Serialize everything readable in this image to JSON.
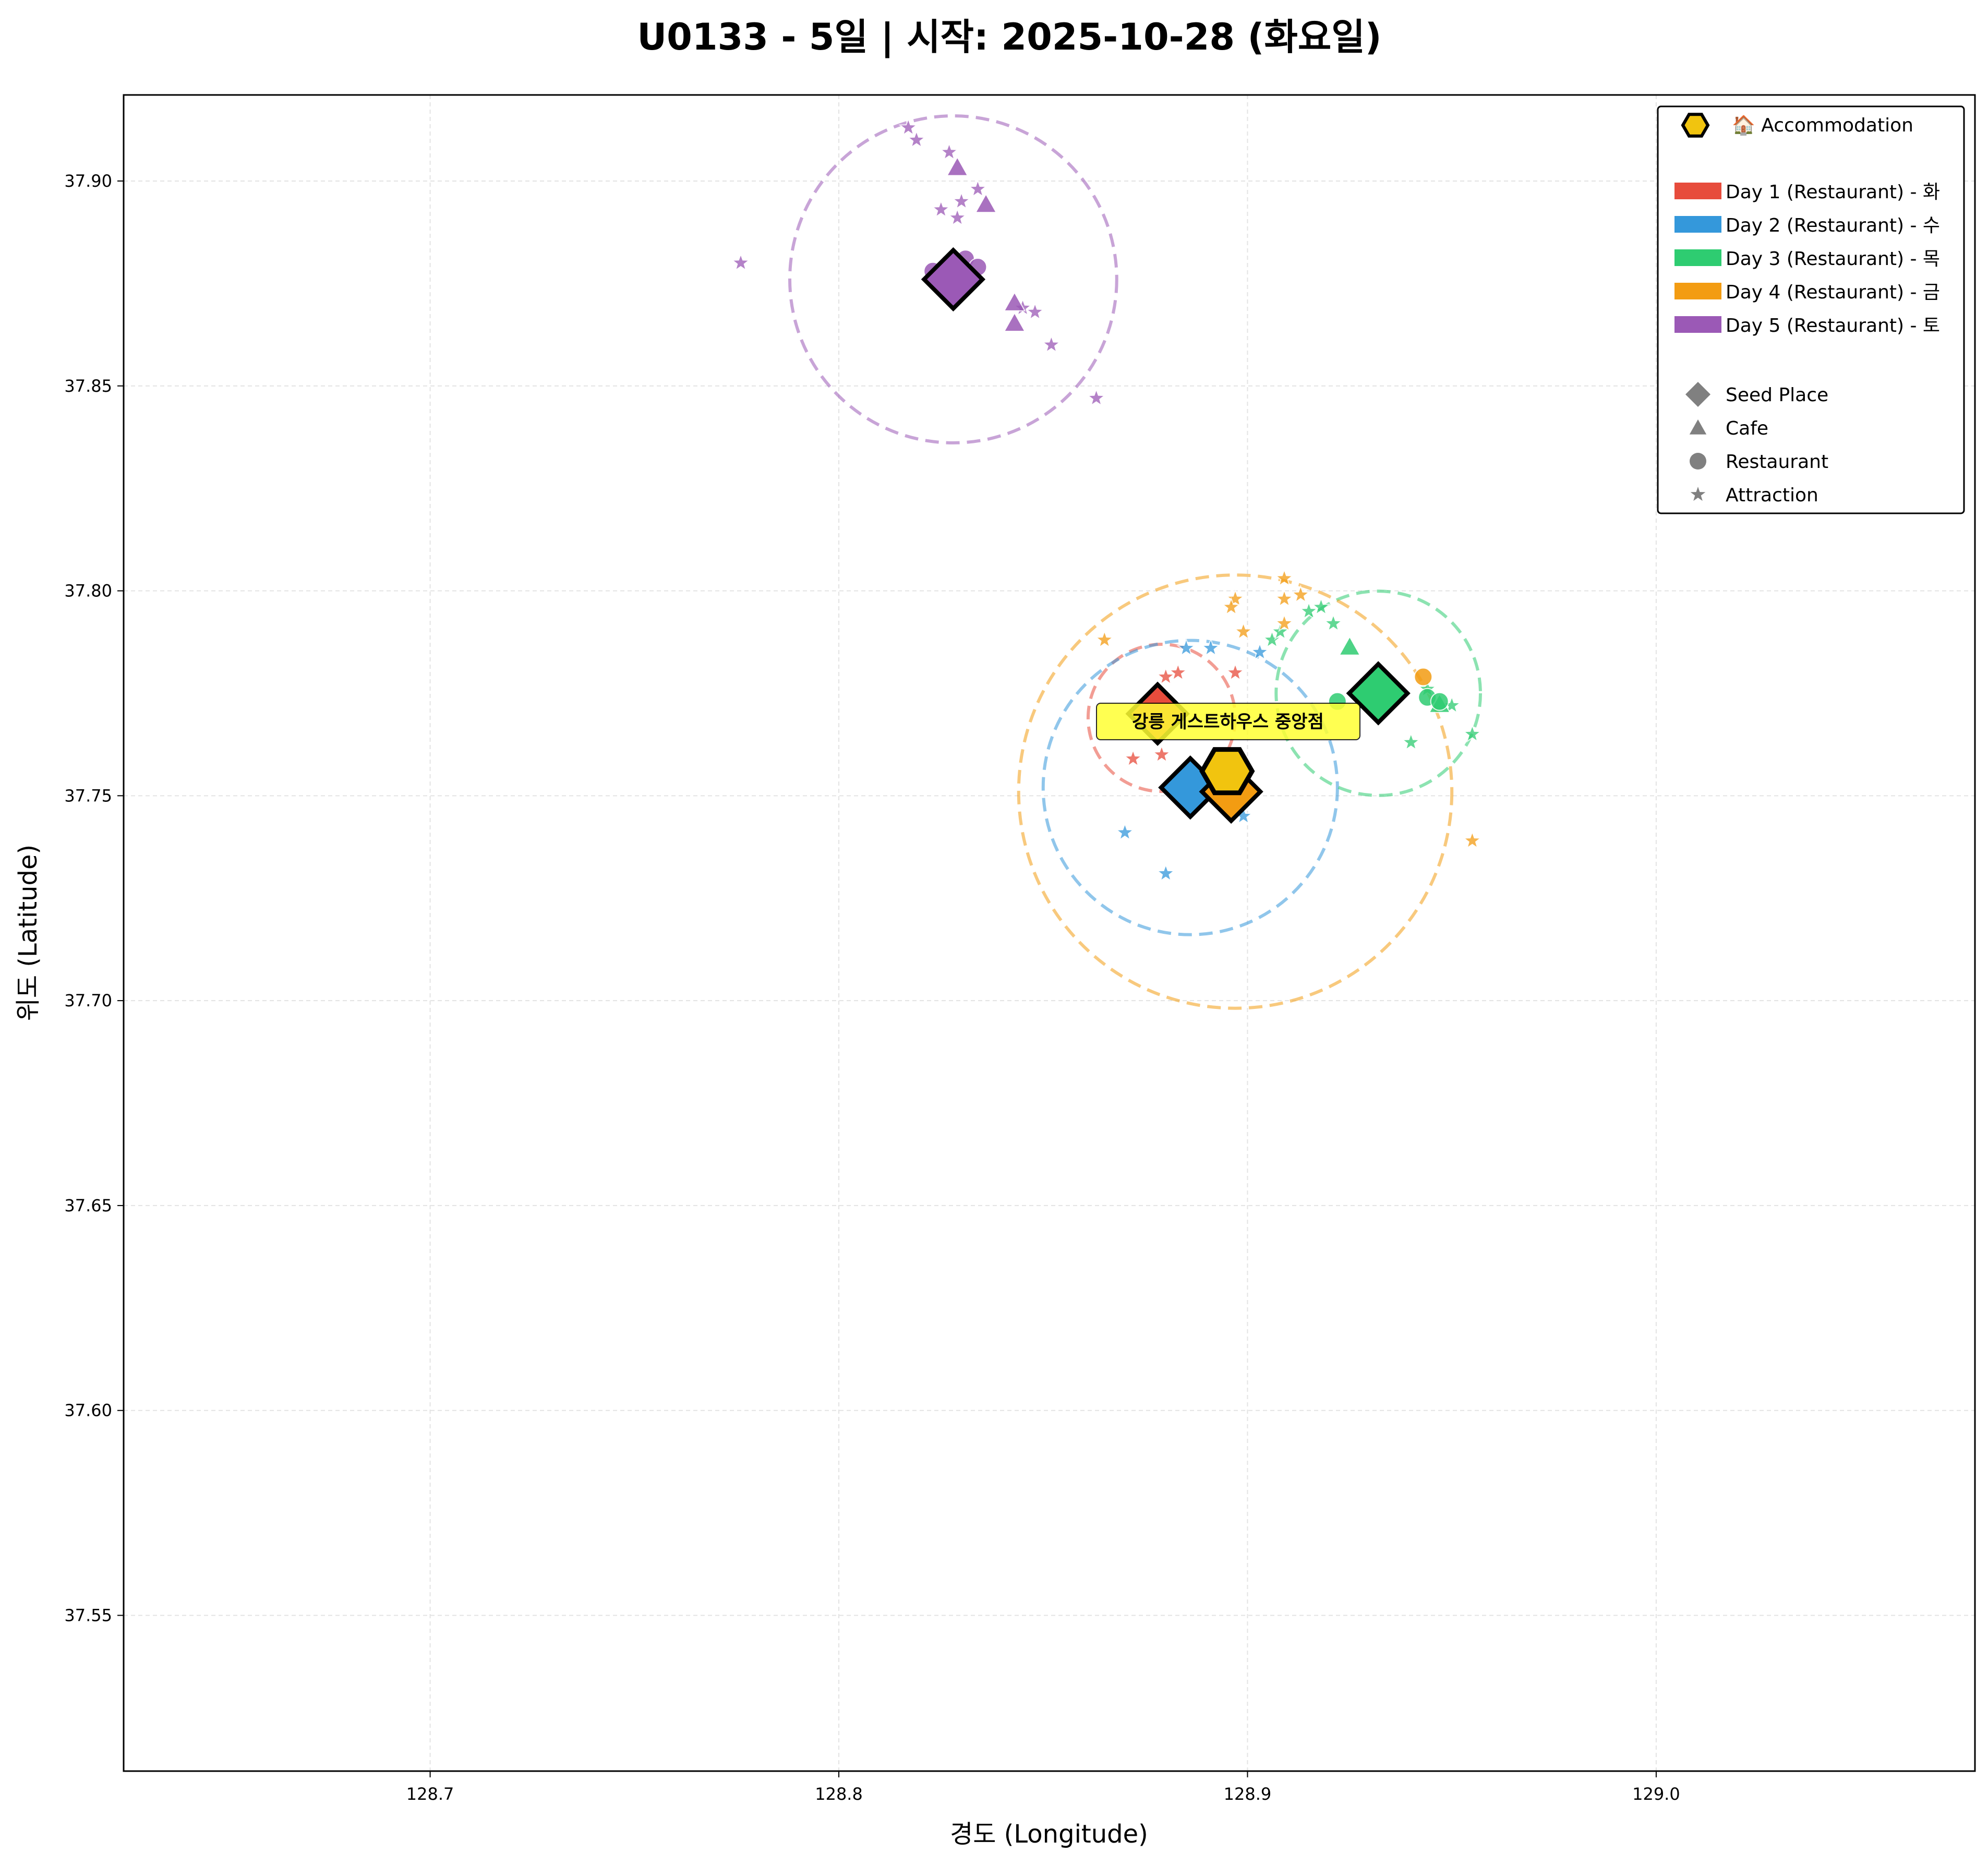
{
  "chart_data": {
    "type": "scatter",
    "title": "U0133 - 5일 | 시작: 2025-10-28 (화요일)",
    "xlabel": "경도 (Longitude)",
    "ylabel": "위도 (Latitude)",
    "xlim": [
      128.625,
      129.078
    ],
    "ylim": [
      37.512,
      37.921
    ],
    "x_ticks": [
      "128.7",
      "128.8",
      "128.9",
      "129.0"
    ],
    "y_ticks": [
      "37.55",
      "37.60",
      "37.65",
      "37.70",
      "37.75",
      "37.80",
      "37.85",
      "37.90"
    ],
    "grid": true,
    "legend_position": "top-right",
    "legend": {
      "accommodation_label": "🏠 Accommodation",
      "days": [
        "Day 1 (Restaurant) - 화",
        "Day 2 (Restaurant) - 수",
        "Day 3 (Restaurant) - 목",
        "Day 4 (Restaurant) - 금",
        "Day 5 (Restaurant) - 토"
      ],
      "types": [
        "Seed Place",
        "Cafe",
        "Restaurant",
        "Attraction"
      ]
    },
    "accommodation": {
      "label": "강릉 게스트하우스 중앙점",
      "lon": 128.895,
      "lat": 37.756,
      "color": "#f1c40f"
    },
    "days": [
      {
        "name": "Day 1 (Restaurant) - 화",
        "color": "#e74c3c",
        "seed": {
          "lon": 128.878,
          "lat": 37.77
        },
        "circle": {
          "lon": 128.879,
          "lat": 37.769,
          "radius_deg": 0.018
        },
        "attractions": [
          [
            128.883,
            37.78
          ],
          [
            128.88,
            37.779
          ],
          [
            128.897,
            37.78
          ],
          [
            128.872,
            37.759
          ],
          [
            128.879,
            37.76
          ]
        ],
        "cafes": [],
        "restaurants": []
      },
      {
        "name": "Day 2 (Restaurant) - 수",
        "color": "#3498db",
        "seed": {
          "lon": 128.886,
          "lat": 37.752
        },
        "circle": {
          "lon": 128.886,
          "lat": 37.752,
          "radius_deg": 0.036
        },
        "attractions": [
          [
            128.885,
            37.786
          ],
          [
            128.891,
            37.786
          ],
          [
            128.903,
            37.785
          ],
          [
            128.87,
            37.741
          ],
          [
            128.88,
            37.731
          ],
          [
            128.899,
            37.745
          ]
        ],
        "cafes": [],
        "restaurants": []
      },
      {
        "name": "Day 3 (Restaurant) - 목",
        "color": "#2ecc71",
        "seed": {
          "lon": 128.932,
          "lat": 37.775
        },
        "circle": {
          "lon": 128.932,
          "lat": 37.775,
          "radius_deg": 0.025
        },
        "attractions": [
          [
            128.906,
            37.788
          ],
          [
            128.908,
            37.79
          ],
          [
            128.915,
            37.795
          ],
          [
            128.918,
            37.796
          ],
          [
            128.921,
            37.792
          ],
          [
            128.944,
            37.776
          ],
          [
            128.95,
            37.772
          ],
          [
            128.955,
            37.765
          ],
          [
            128.94,
            37.763
          ]
        ],
        "cafes": [
          [
            128.925,
            37.786
          ],
          [
            128.947,
            37.772
          ]
        ],
        "restaurants": [
          [
            128.922,
            37.773
          ],
          [
            128.929,
            37.777
          ],
          [
            128.944,
            37.774
          ],
          [
            128.947,
            37.773
          ]
        ]
      },
      {
        "name": "Day 4 (Restaurant) - 금",
        "color": "#f39c12",
        "seed": {
          "lon": 128.896,
          "lat": 37.751
        },
        "circle": {
          "lon": 128.897,
          "lat": 37.751,
          "radius_deg": 0.053
        },
        "attractions": [
          [
            128.865,
            37.788
          ],
          [
            128.897,
            37.798
          ],
          [
            128.896,
            37.796
          ],
          [
            128.899,
            37.79
          ],
          [
            128.909,
            37.803
          ],
          [
            128.909,
            37.798
          ],
          [
            128.913,
            37.799
          ],
          [
            128.909,
            37.792
          ],
          [
            128.955,
            37.739
          ]
        ],
        "cafes": [],
        "restaurants": [
          [
            128.943,
            37.779
          ]
        ]
      },
      {
        "name": "Day 5 (Restaurant) - 토",
        "color": "#9b59b6",
        "seed": {
          "lon": 128.828,
          "lat": 37.876
        },
        "circle": {
          "lon": 128.828,
          "lat": 37.876,
          "radius_deg": 0.04
        },
        "attractions": [
          [
            128.817,
            37.913
          ],
          [
            128.819,
            37.91
          ],
          [
            128.827,
            37.907
          ],
          [
            128.825,
            37.893
          ],
          [
            128.83,
            37.895
          ],
          [
            128.834,
            37.898
          ],
          [
            128.829,
            37.891
          ],
          [
            128.776,
            37.88
          ],
          [
            128.852,
            37.86
          ],
          [
            128.863,
            37.847
          ],
          [
            128.848,
            37.868
          ],
          [
            128.845,
            37.869
          ]
        ],
        "cafes": [
          [
            128.829,
            37.903
          ],
          [
            128.836,
            37.894
          ],
          [
            128.843,
            37.865
          ],
          [
            128.843,
            37.87
          ]
        ],
        "restaurants": [
          [
            128.823,
            37.878
          ],
          [
            128.827,
            37.88
          ],
          [
            128.831,
            37.881
          ],
          [
            128.834,
            37.879
          ]
        ]
      }
    ]
  }
}
